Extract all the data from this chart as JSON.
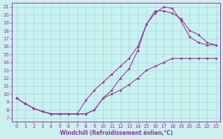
{
  "xlabel": "Windchill (Refroidissement éolien,°C)",
  "bg_color": "#caf0f0",
  "line_color": "#993399",
  "grid_color": "#99dddd",
  "xlim": [
    -0.5,
    23.5
  ],
  "ylim": [
    6.5,
    21.5
  ],
  "xticks": [
    0,
    1,
    2,
    3,
    4,
    5,
    6,
    7,
    8,
    9,
    10,
    11,
    12,
    13,
    14,
    15,
    16,
    17,
    18,
    19,
    20,
    21,
    22,
    23
  ],
  "yticks": [
    7,
    8,
    9,
    10,
    11,
    12,
    13,
    14,
    15,
    16,
    17,
    18,
    19,
    20,
    21
  ],
  "line1_x": [
    0,
    1,
    2,
    3,
    4,
    5,
    6,
    7,
    8,
    9,
    10,
    11,
    12,
    13,
    14,
    15,
    16,
    17,
    18,
    19,
    20,
    21,
    22,
    23
  ],
  "line1_y": [
    9.5,
    8.8,
    8.2,
    7.8,
    7.5,
    7.5,
    7.5,
    7.5,
    7.5,
    8.0,
    9.5,
    10.0,
    10.5,
    11.2,
    12.0,
    13.0,
    13.5,
    14.0,
    14.5,
    14.5,
    14.5,
    14.5,
    14.5,
    14.5
  ],
  "line2_x": [
    0,
    1,
    2,
    3,
    4,
    5,
    6,
    7,
    8,
    9,
    10,
    11,
    12,
    13,
    14,
    15,
    16,
    17,
    18,
    19,
    20,
    21,
    22,
    23
  ],
  "line2_y": [
    9.5,
    8.8,
    8.2,
    7.8,
    7.5,
    7.5,
    7.5,
    7.5,
    9.2,
    10.5,
    11.5,
    12.5,
    13.5,
    14.5,
    16.0,
    18.8,
    20.2,
    21.0,
    20.8,
    19.2,
    17.2,
    16.5,
    16.2,
    16.2
  ],
  "line3_x": [
    0,
    1,
    2,
    3,
    4,
    5,
    6,
    7,
    8,
    9,
    10,
    11,
    12,
    13,
    14,
    15,
    16,
    17,
    18,
    19,
    20,
    21,
    22,
    23
  ],
  "line3_y": [
    9.5,
    8.8,
    8.2,
    7.8,
    7.5,
    7.5,
    7.5,
    7.5,
    7.5,
    8.0,
    9.5,
    10.5,
    12.0,
    13.2,
    15.5,
    18.8,
    20.5,
    20.5,
    20.2,
    19.5,
    18.0,
    17.5,
    16.5,
    16.2
  ]
}
